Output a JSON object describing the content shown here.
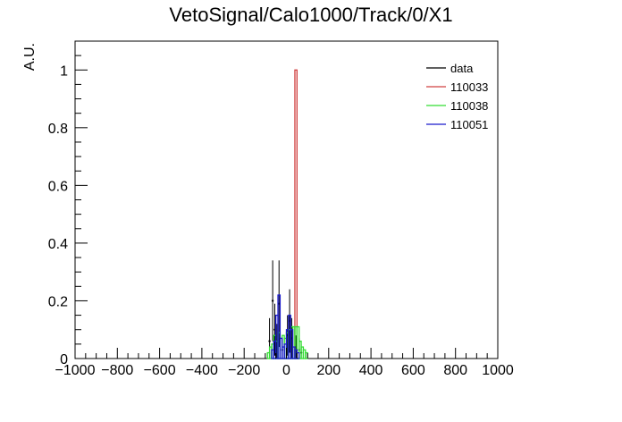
{
  "chart_data": {
    "type": "histogram",
    "title": "VetoSignal/Calo1000/Track/0/X1",
    "xlabel": "",
    "ylabel": "A.U.",
    "xlim": [
      -1000,
      1000
    ],
    "ylim": [
      0,
      1.1
    ],
    "x_ticks": [
      -1000,
      -800,
      -600,
      -400,
      -200,
      0,
      200,
      400,
      600,
      800,
      1000
    ],
    "x_tick_labels": [
      "−1000",
      "−800",
      "−600",
      "−400",
      "−200",
      "0",
      "200",
      "400",
      "600",
      "800",
      "1000"
    ],
    "y_ticks": [
      0,
      0.2,
      0.4,
      0.6,
      0.8,
      1
    ],
    "y_tick_labels": [
      "0",
      "0.2",
      "0.4",
      "0.6",
      "0.8",
      "1"
    ],
    "legend_position": "top-right",
    "series": [
      {
        "name": "data",
        "style": "errorbar",
        "color": "#000000",
        "points": [
          {
            "x": -80,
            "y": 0.06,
            "err": 0.08
          },
          {
            "x": -65,
            "y": 0.2,
            "err": 0.14
          },
          {
            "x": -55,
            "y": 0.1,
            "err": 0.09
          },
          {
            "x": -45,
            "y": 0.06,
            "err": 0.06
          },
          {
            "x": -35,
            "y": 0.19,
            "err": 0.15
          },
          {
            "x": -20,
            "y": 0.03,
            "err": 0.04
          },
          {
            "x": 5,
            "y": 0.08,
            "err": 0.07
          },
          {
            "x": 15,
            "y": 0.13,
            "err": 0.11
          },
          {
            "x": 25,
            "y": 0.07,
            "err": 0.07
          },
          {
            "x": 45,
            "y": 0.04,
            "err": 0.04
          },
          {
            "x": 60,
            "y": 0.03,
            "err": 0.04
          },
          {
            "x": 70,
            "y": 0.02,
            "err": 0.03
          }
        ]
      },
      {
        "name": "110033",
        "style": "step",
        "color": "#d04040",
        "bins": [
          {
            "x0": 40,
            "x1": 50,
            "y": 1.0
          }
        ]
      },
      {
        "name": "110038",
        "style": "step",
        "color": "#33dd33",
        "bins": [
          {
            "x0": -90,
            "x1": -80,
            "y": 0.02
          },
          {
            "x0": -80,
            "x1": -70,
            "y": 0.04
          },
          {
            "x0": -70,
            "x1": -60,
            "y": 0.05
          },
          {
            "x0": -60,
            "x1": -50,
            "y": 0.08
          },
          {
            "x0": -50,
            "x1": -40,
            "y": 0.06
          },
          {
            "x0": -40,
            "x1": -30,
            "y": 0.09
          },
          {
            "x0": -30,
            "x1": -20,
            "y": 0.07
          },
          {
            "x0": -20,
            "x1": -10,
            "y": 0.08
          },
          {
            "x0": -10,
            "x1": 0,
            "y": 0.07
          },
          {
            "x0": 0,
            "x1": 10,
            "y": 0.09
          },
          {
            "x0": 10,
            "x1": 20,
            "y": 0.1
          },
          {
            "x0": 20,
            "x1": 30,
            "y": 0.11
          },
          {
            "x0": 30,
            "x1": 40,
            "y": 0.11
          },
          {
            "x0": 40,
            "x1": 50,
            "y": 0.11
          },
          {
            "x0": 50,
            "x1": 60,
            "y": 0.11
          },
          {
            "x0": 60,
            "x1": 70,
            "y": 0.06
          },
          {
            "x0": 70,
            "x1": 80,
            "y": 0.04
          },
          {
            "x0": 80,
            "x1": 90,
            "y": 0.03
          },
          {
            "x0": 90,
            "x1": 100,
            "y": 0.02
          }
        ]
      },
      {
        "name": "110051",
        "style": "step",
        "color": "#1a1acc",
        "bins": [
          {
            "x0": -70,
            "x1": -60,
            "y": 0.03
          },
          {
            "x0": -60,
            "x1": -50,
            "y": 0.06
          },
          {
            "x0": -50,
            "x1": -40,
            "y": 0.15
          },
          {
            "x0": -40,
            "x1": -30,
            "y": 0.22
          },
          {
            "x0": -30,
            "x1": -20,
            "y": 0.07
          },
          {
            "x0": -20,
            "x1": -10,
            "y": 0.04
          },
          {
            "x0": -10,
            "x1": 0,
            "y": 0.05
          },
          {
            "x0": 0,
            "x1": 10,
            "y": 0.1
          },
          {
            "x0": 10,
            "x1": 20,
            "y": 0.15
          },
          {
            "x0": 20,
            "x1": 30,
            "y": 0.1
          },
          {
            "x0": 30,
            "x1": 40,
            "y": 0.04
          },
          {
            "x0": 40,
            "x1": 50,
            "y": 0.03
          },
          {
            "x0": 50,
            "x1": 60,
            "y": 0.02
          }
        ]
      }
    ]
  }
}
